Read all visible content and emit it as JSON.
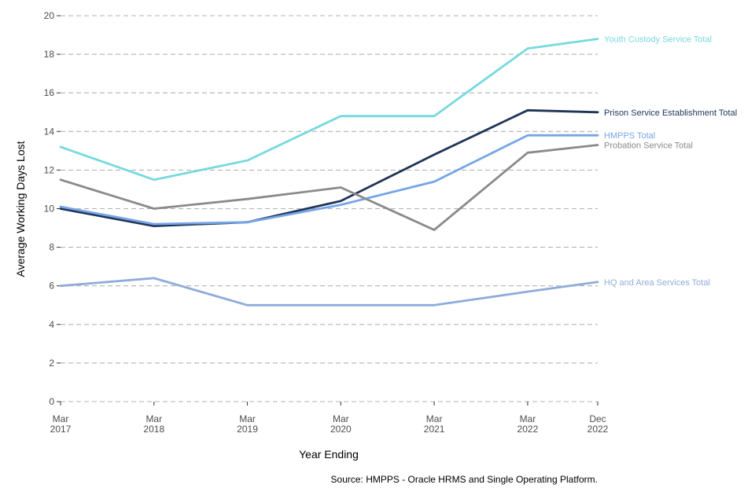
{
  "chart_data": {
    "type": "line",
    "title": "",
    "xlabel": "Year Ending",
    "ylabel": "Average Working Days Lost",
    "ylim": [
      0,
      20
    ],
    "yticks": [
      0,
      2,
      4,
      6,
      8,
      10,
      12,
      14,
      16,
      18,
      20
    ],
    "grid": "horizontal dashed",
    "x_positions": [
      2017,
      2018,
      2019,
      2020,
      2021,
      2022,
      2022.75
    ],
    "categories": [
      {
        "line1": "Mar",
        "line2": "2017"
      },
      {
        "line1": "Mar",
        "line2": "2018"
      },
      {
        "line1": "Mar",
        "line2": "2019"
      },
      {
        "line1": "Mar",
        "line2": "2020"
      },
      {
        "line1": "Mar",
        "line2": "2021"
      },
      {
        "line1": "Mar",
        "line2": "2022"
      },
      {
        "line1": "Dec",
        "line2": "2022"
      }
    ],
    "series": [
      {
        "name": "Youth Custody Service Total",
        "color": "#77d9de",
        "values": [
          13.2,
          11.5,
          12.5,
          14.8,
          14.8,
          18.3,
          18.8
        ]
      },
      {
        "name": "Prison Service Establishment Total",
        "color": "#1f3458",
        "values": [
          10.0,
          9.1,
          9.3,
          10.4,
          12.8,
          15.1,
          15.0
        ]
      },
      {
        "name": "HMPPS Total",
        "color": "#76a5e6",
        "values": [
          10.1,
          9.2,
          9.3,
          10.2,
          11.4,
          13.8,
          13.8
        ]
      },
      {
        "name": "Probation Service Total",
        "color": "#8a8a8a",
        "values": [
          11.5,
          10.0,
          10.5,
          11.1,
          8.9,
          12.9,
          13.3
        ]
      },
      {
        "name": "HQ and Area Services Total",
        "color": "#8fabdb",
        "values": [
          6.0,
          6.4,
          5.0,
          5.0,
          5.0,
          5.7,
          6.2
        ]
      }
    ]
  },
  "source": "Source: HMPPS - Oracle HRMS and Single Operating Platform."
}
